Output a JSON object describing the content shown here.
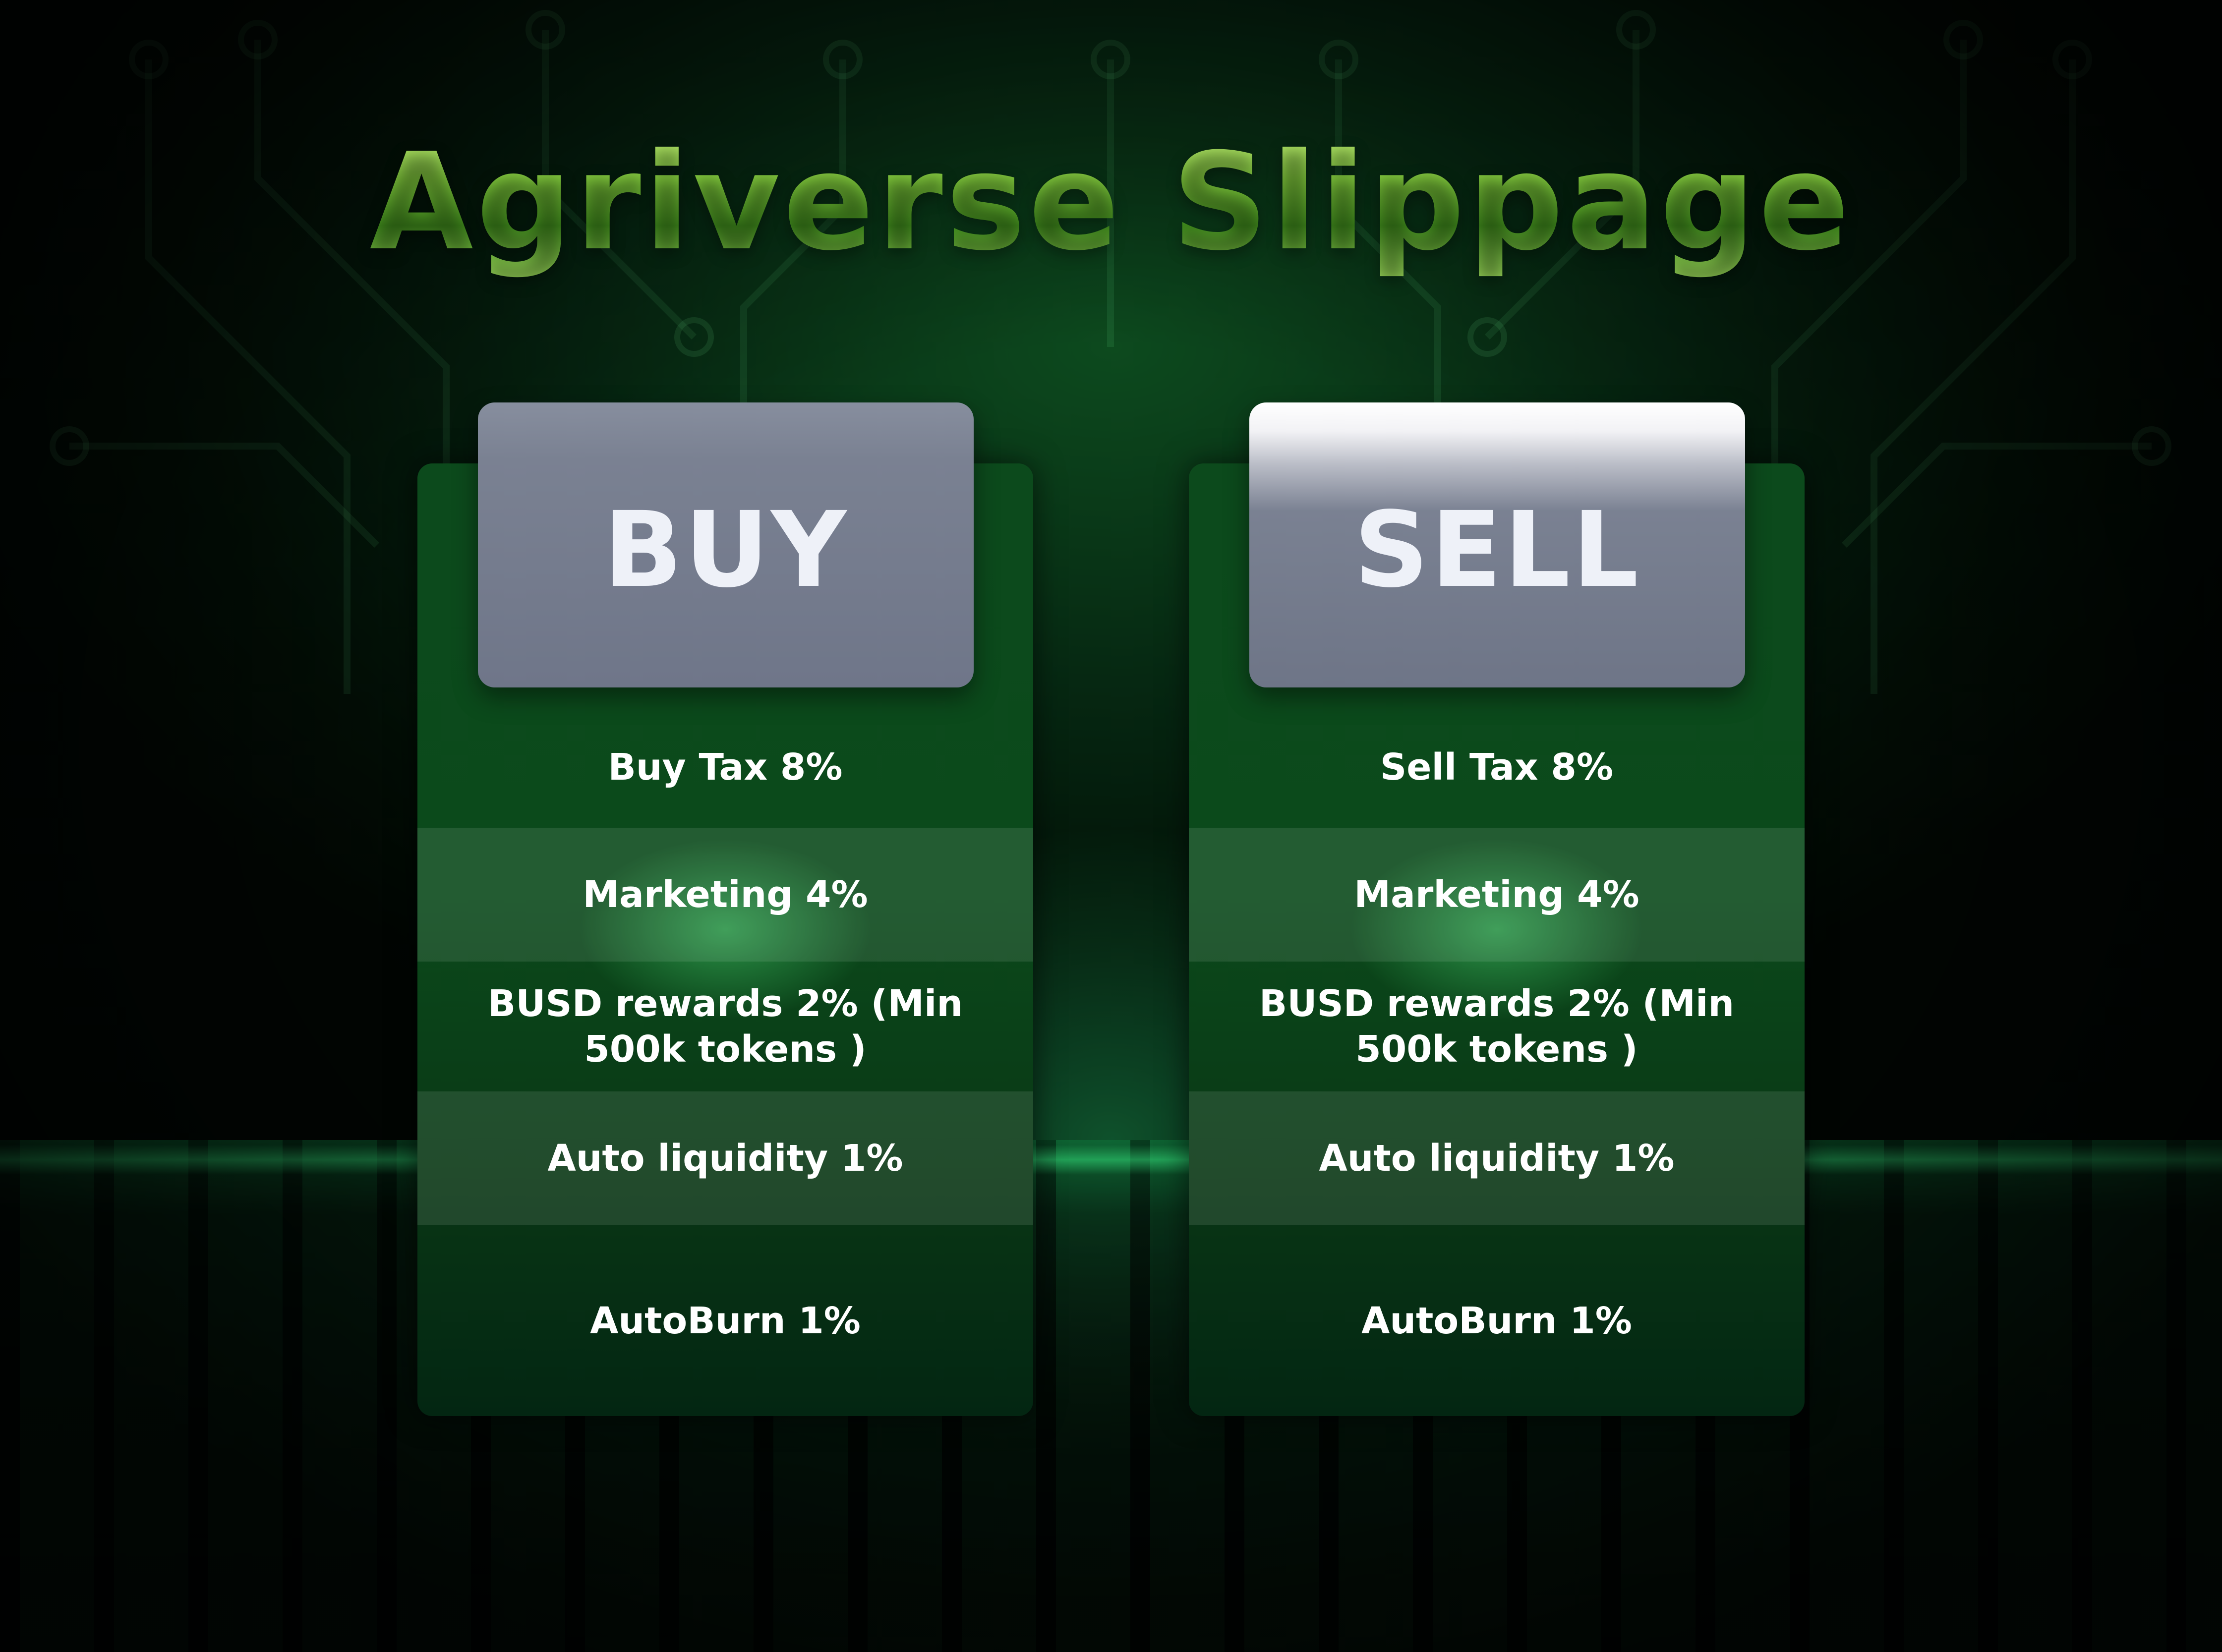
{
  "title": "Agriverse Slippage",
  "colors": {
    "background": "#062812",
    "panel": "#0b4a1b",
    "header_box": "#6f7689",
    "title_green": "#7cc23a",
    "text": "#ffffff"
  },
  "buy": {
    "header": "BUY",
    "rows": [
      "Buy Tax 8%",
      "Marketing 4%",
      "BUSD rewards 2% (Min 500k tokens )",
      "Auto liquidity 1%",
      "AutoBurn 1%"
    ]
  },
  "sell": {
    "header": "SELL",
    "rows": [
      "Sell Tax 8%",
      "Marketing 4%",
      "BUSD rewards 2% (Min 500k tokens )",
      "Auto liquidity 1%",
      "AutoBurn 1%"
    ]
  }
}
